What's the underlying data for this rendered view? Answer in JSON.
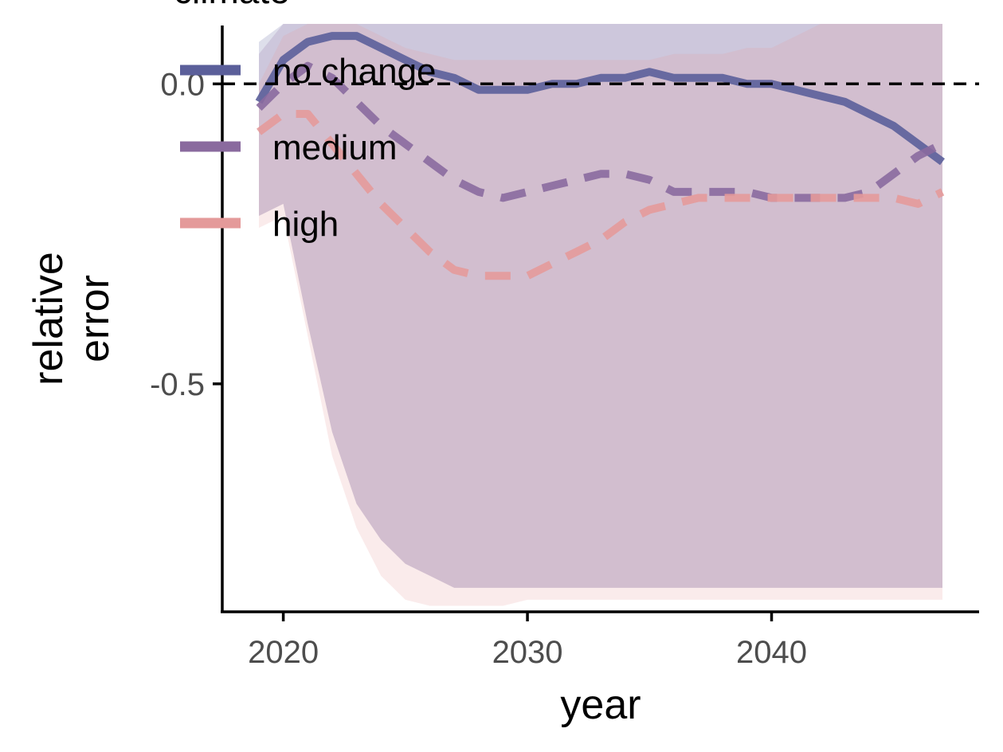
{
  "chart_data": {
    "type": "line",
    "xlabel": "year",
    "ylabel": "relative\nerror",
    "xlim": [
      2017.5,
      2048.5
    ],
    "ylim": [
      -0.88,
      0.1
    ],
    "x_ticks": [
      2020,
      2030,
      2040
    ],
    "y_ticks": [
      0.0,
      -0.5
    ],
    "y_tick_labels": [
      "0.0",
      "-0.5"
    ],
    "reference_line": {
      "y": 0,
      "style": "dashed",
      "color": "#000000"
    },
    "legend": {
      "title": "climate",
      "placement": "top-left"
    },
    "series": [
      {
        "name": "no change",
        "color": "#5b5f9a",
        "line_style": "solid",
        "x": [
          2019,
          2020,
          2021,
          2022,
          2023,
          2024,
          2025,
          2026,
          2027,
          2028,
          2029,
          2030,
          2031,
          2032,
          2033,
          2034,
          2035,
          2036,
          2037,
          2038,
          2039,
          2040,
          2041,
          2042,
          2043,
          2044,
          2045,
          2046,
          2047
        ],
        "y": [
          -0.03,
          0.04,
          0.07,
          0.08,
          0.08,
          0.06,
          0.04,
          0.02,
          0.01,
          -0.01,
          -0.01,
          -0.01,
          0.0,
          0.0,
          0.01,
          0.01,
          0.02,
          0.01,
          0.01,
          0.01,
          0.0,
          0.0,
          -0.01,
          -0.02,
          -0.03,
          -0.05,
          -0.07,
          -0.1,
          -0.13
        ],
        "band_upper": [
          0.07,
          0.1,
          0.1,
          0.1,
          0.1,
          0.1,
          0.1,
          0.1,
          0.1,
          0.22,
          0.2,
          0.18,
          0.18,
          0.18,
          0.18,
          0.18,
          0.2,
          0.15,
          0.15,
          0.15,
          0.15,
          0.13,
          0.14,
          0.15,
          0.18,
          0.18,
          0.12,
          0.1,
          0.1
        ],
        "band_lower": [
          -0.22,
          -0.2,
          -0.4,
          -0.58,
          -0.7,
          -0.76,
          -0.8,
          -0.82,
          -0.84,
          -0.84,
          -0.84,
          -0.84,
          -0.84,
          -0.84,
          -0.84,
          -0.84,
          -0.84,
          -0.84,
          -0.84,
          -0.84,
          -0.84,
          -0.84,
          -0.84,
          -0.84,
          -0.84,
          -0.84,
          -0.84,
          -0.84,
          -0.84
        ]
      },
      {
        "name": "medium",
        "color": "#8a6a9e",
        "line_style": "dashed",
        "x": [
          2019,
          2020,
          2021,
          2022,
          2023,
          2024,
          2025,
          2026,
          2027,
          2028,
          2029,
          2030,
          2031,
          2032,
          2033,
          2034,
          2035,
          2036,
          2037,
          2038,
          2039,
          2040,
          2041,
          2042,
          2043,
          2044,
          2045,
          2046,
          2047
        ],
        "y": [
          -0.04,
          0.0,
          0.03,
          0.01,
          -0.03,
          -0.07,
          -0.1,
          -0.13,
          -0.16,
          -0.18,
          -0.19,
          -0.18,
          -0.17,
          -0.16,
          -0.15,
          -0.15,
          -0.16,
          -0.18,
          -0.18,
          -0.18,
          -0.18,
          -0.19,
          -0.19,
          -0.19,
          -0.19,
          -0.18,
          -0.15,
          -0.12,
          -0.1
        ],
        "band_upper": [
          0.05,
          0.1,
          0.1,
          0.1,
          0.1,
          0.1,
          0.1,
          0.1,
          0.1,
          0.1,
          0.1,
          0.1,
          0.1,
          0.1,
          0.1,
          0.1,
          0.1,
          0.1,
          0.1,
          0.1,
          0.1,
          0.1,
          0.1,
          0.1,
          0.1,
          0.14,
          0.18,
          0.22,
          0.27
        ],
        "band_lower": [
          -0.22,
          -0.2,
          -0.4,
          -0.58,
          -0.7,
          -0.76,
          -0.8,
          -0.82,
          -0.84,
          -0.84,
          -0.84,
          -0.84,
          -0.84,
          -0.84,
          -0.84,
          -0.84,
          -0.84,
          -0.84,
          -0.84,
          -0.84,
          -0.84,
          -0.84,
          -0.84,
          -0.84,
          -0.84,
          -0.84,
          -0.84,
          -0.84,
          -0.84
        ]
      },
      {
        "name": "high",
        "color": "#e49a9a",
        "line_style": "dashed",
        "x": [
          2019,
          2020,
          2021,
          2022,
          2023,
          2024,
          2025,
          2026,
          2027,
          2028,
          2029,
          2030,
          2031,
          2032,
          2033,
          2034,
          2035,
          2036,
          2037,
          2038,
          2039,
          2040,
          2041,
          2042,
          2043,
          2044,
          2045,
          2046,
          2047
        ],
        "y": [
          -0.08,
          -0.05,
          -0.05,
          -0.1,
          -0.15,
          -0.2,
          -0.24,
          -0.28,
          -0.31,
          -0.32,
          -0.32,
          -0.32,
          -0.3,
          -0.28,
          -0.26,
          -0.23,
          -0.21,
          -0.2,
          -0.19,
          -0.19,
          -0.19,
          -0.19,
          -0.19,
          -0.19,
          -0.19,
          -0.19,
          -0.19,
          -0.2,
          -0.18
        ],
        "band_upper": [
          0.0,
          0.08,
          0.1,
          0.1,
          0.1,
          0.08,
          0.06,
          0.05,
          0.04,
          0.04,
          0.04,
          0.04,
          0.04,
          0.04,
          0.04,
          0.04,
          0.04,
          0.05,
          0.05,
          0.05,
          0.06,
          0.06,
          0.08,
          0.1,
          0.14,
          0.3,
          0.7,
          1.2,
          0.9
        ],
        "band_lower": [
          -0.24,
          -0.22,
          -0.42,
          -0.62,
          -0.74,
          -0.82,
          -0.86,
          -0.87,
          -0.87,
          -0.87,
          -0.87,
          -0.86,
          -0.86,
          -0.86,
          -0.86,
          -0.86,
          -0.86,
          -0.86,
          -0.86,
          -0.86,
          -0.86,
          -0.86,
          -0.86,
          -0.86,
          -0.86,
          -0.86,
          -0.86,
          -0.86,
          -0.86
        ]
      }
    ]
  }
}
